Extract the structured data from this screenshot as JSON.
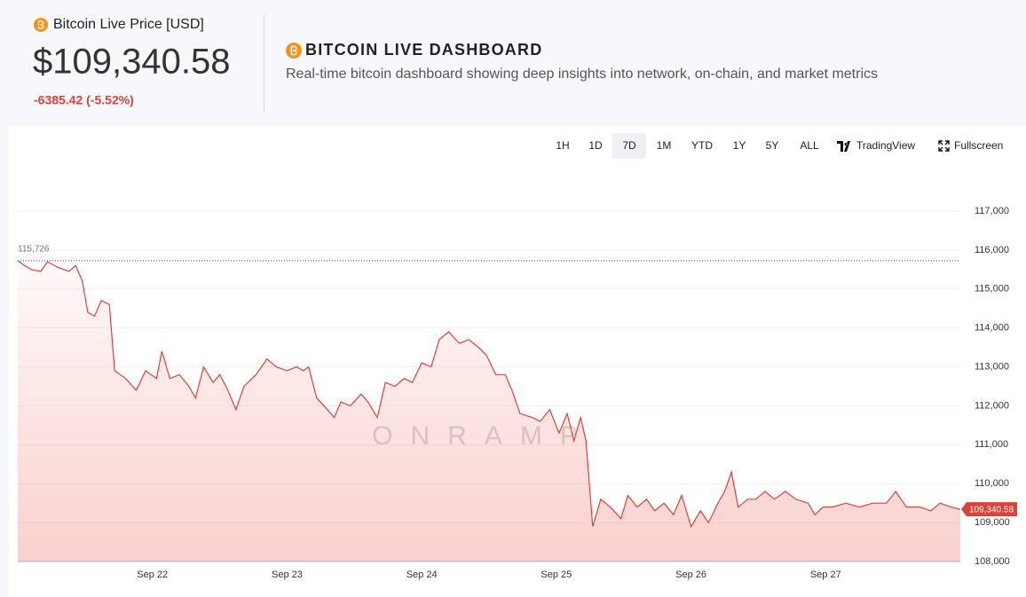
{
  "header": {
    "title": "Bitcoin Live Price [USD]",
    "price": "$109,340.58",
    "change": "-6385.42 (-5.52%)"
  },
  "dashboard": {
    "title": "BITCOIN LIVE DASHBOARD",
    "subtitle": "Real-time bitcoin dashboard showing deep insights into network, on-chain, and market metrics"
  },
  "toolbar": {
    "ranges": [
      "1H",
      "1D",
      "7D",
      "1M",
      "YTD",
      "1Y",
      "5Y",
      "ALL"
    ],
    "selected": "7D",
    "tradingview": "TradingView",
    "fullscreen": "Fullscreen"
  },
  "chart_data": {
    "type": "line",
    "color": "#d9433a",
    "watermark": "ONRAMP",
    "x": [
      21.0,
      21.05,
      21.1,
      21.17,
      21.22,
      21.3,
      21.38,
      21.43,
      21.48,
      21.52,
      21.57,
      21.62,
      21.68,
      21.72,
      21.8,
      21.88,
      21.95,
      22.03,
      22.07,
      22.13,
      22.2,
      22.27,
      22.32,
      22.38,
      22.45,
      22.5,
      22.56,
      22.62,
      22.68,
      22.77,
      22.85,
      22.92,
      23.0,
      23.07,
      23.12,
      23.16,
      23.22,
      23.3,
      23.35,
      23.4,
      23.47,
      23.55,
      23.6,
      23.67,
      23.73,
      23.8,
      23.87,
      23.93,
      24.0,
      24.07,
      24.13,
      24.2,
      24.28,
      24.35,
      24.42,
      24.48,
      24.55,
      24.62,
      24.67,
      24.73,
      24.82,
      24.88,
      24.95,
      25.02,
      25.08,
      25.13,
      25.18,
      25.22,
      25.27,
      25.33,
      25.4,
      25.48,
      25.53,
      25.6,
      25.67,
      25.73,
      25.8,
      25.87,
      25.93,
      26.0,
      26.07,
      26.13,
      26.2,
      26.25,
      26.3,
      26.35,
      26.42,
      26.48,
      26.55,
      26.62,
      26.7,
      26.78,
      26.87,
      26.92,
      26.98,
      27.05,
      27.15,
      27.25,
      27.35,
      27.45,
      27.52,
      27.6,
      27.7,
      27.78,
      27.85,
      27.93,
      28.0
    ],
    "values": [
      115726,
      115600,
      115500,
      115450,
      115700,
      115550,
      115450,
      115600,
      115200,
      114400,
      114300,
      114700,
      114600,
      112900,
      112700,
      112400,
      112900,
      112700,
      113400,
      112700,
      112800,
      112500,
      112200,
      113000,
      112600,
      112800,
      112400,
      111900,
      112500,
      112800,
      113200,
      113000,
      112900,
      113000,
      112900,
      113000,
      112200,
      111900,
      111700,
      112100,
      112000,
      112300,
      112100,
      111700,
      112600,
      112500,
      112700,
      112600,
      113100,
      113000,
      113700,
      113900,
      113600,
      113700,
      113500,
      113300,
      112800,
      112800,
      112400,
      111800,
      111700,
      111600,
      111900,
      111300,
      111800,
      111100,
      111700,
      111100,
      108900,
      109600,
      109400,
      109100,
      109700,
      109400,
      109600,
      109300,
      109500,
      109200,
      109700,
      108900,
      109300,
      109000,
      109500,
      109800,
      110300,
      109400,
      109600,
      109600,
      109800,
      109600,
      109800,
      109600,
      109500,
      109200,
      109400,
      109400,
      109500,
      109400,
      109500,
      109500,
      109800,
      109400,
      109400,
      109300,
      109500,
      109400,
      109340.58
    ],
    "xlim": [
      21,
      28
    ],
    "xticks": [
      {
        "value": 22,
        "label": "Sep 22"
      },
      {
        "value": 23,
        "label": "Sep 23"
      },
      {
        "value": 24,
        "label": "Sep 24"
      },
      {
        "value": 25,
        "label": "Sep 25"
      },
      {
        "value": 26,
        "label": "Sep 26"
      },
      {
        "value": 27,
        "label": "Sep 27"
      }
    ],
    "ylim": [
      108000,
      117000
    ],
    "yticks": [
      {
        "value": 108000,
        "label": "108,000"
      },
      {
        "value": 109000,
        "label": "109,000"
      },
      {
        "value": 110000,
        "label": "110,000"
      },
      {
        "value": 111000,
        "label": "111,000"
      },
      {
        "value": 112000,
        "label": "112,000"
      },
      {
        "value": 113000,
        "label": "113,000"
      },
      {
        "value": 114000,
        "label": "114,000"
      },
      {
        "value": 115000,
        "label": "115,000"
      },
      {
        "value": 116000,
        "label": "116,000"
      },
      {
        "value": 117000,
        "label": "117,000"
      }
    ],
    "grid": true,
    "reference_line": {
      "value": 115726,
      "label": "115,726"
    },
    "last_price_label": {
      "value": 109340.58,
      "label": "109,340.58"
    }
  }
}
